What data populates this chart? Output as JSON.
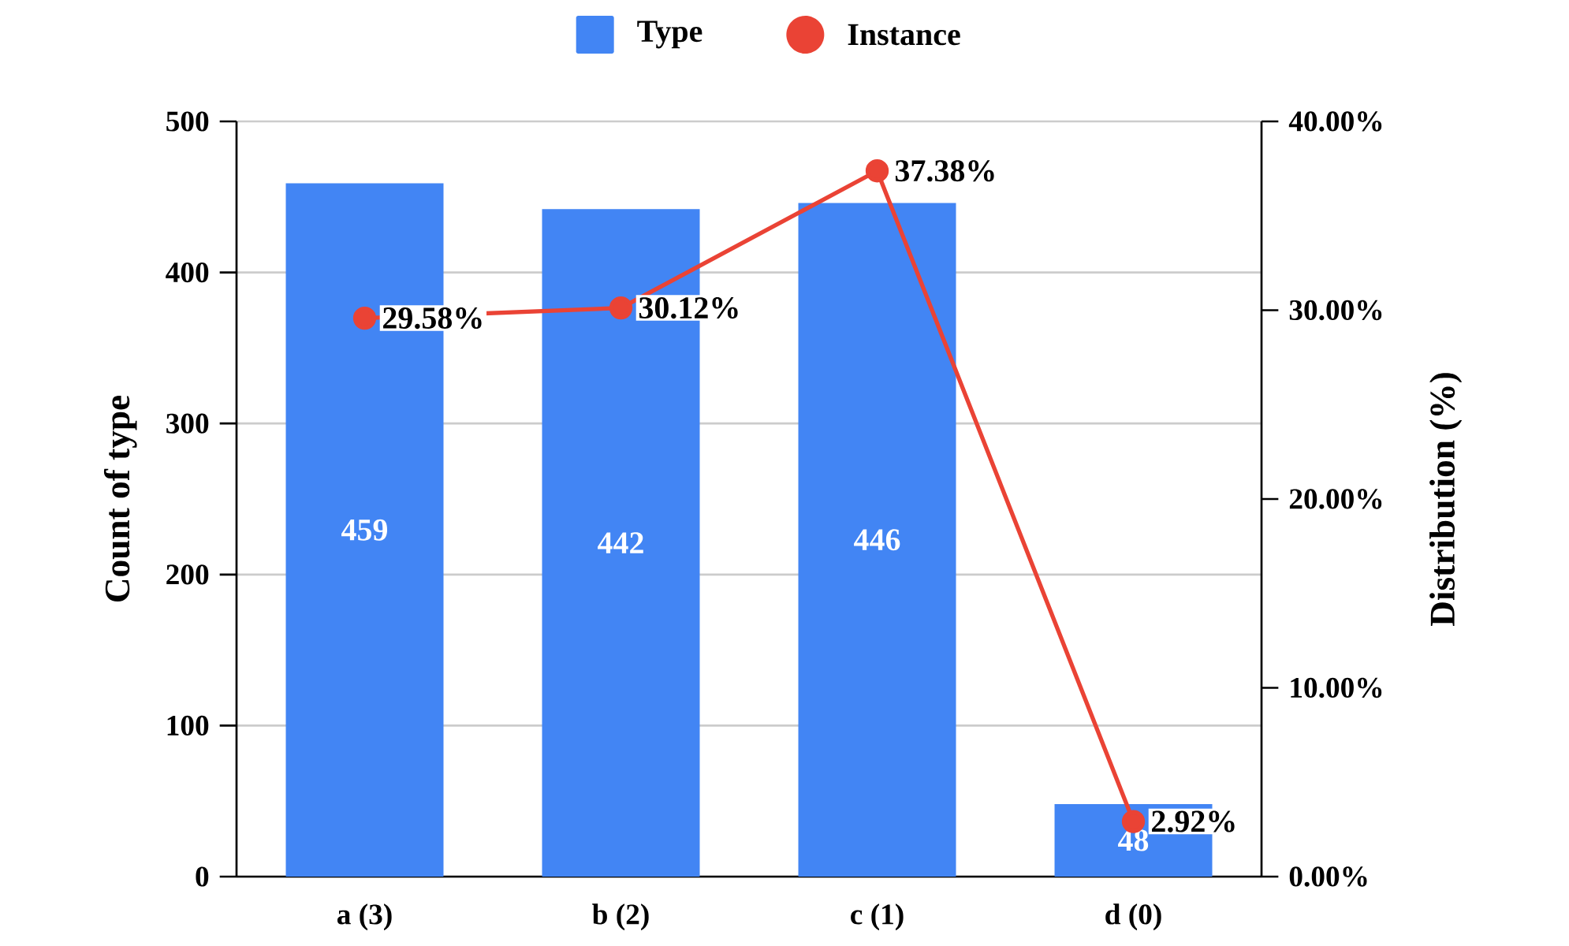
{
  "chart_data": {
    "type": "bar",
    "ylabel": "Count of type",
    "y2label": "Distribution (%)",
    "categories": [
      "a (3)",
      "b (2)",
      "c (1)",
      "d (0)"
    ],
    "series": [
      {
        "name": "Type",
        "color": "#4285f4",
        "values": [
          459,
          442,
          446,
          48
        ],
        "value_labels": [
          "459",
          "442",
          "446",
          "48"
        ]
      },
      {
        "name": "Instance",
        "type": "line",
        "axis": "y2",
        "color": "#ea4335",
        "marker": "circle",
        "values": [
          29.58,
          30.12,
          37.38,
          2.92
        ],
        "value_labels": [
          "29.58%",
          "30.12%",
          "37.38%",
          "2.92%"
        ]
      }
    ],
    "ylim": [
      0,
      500
    ],
    "yticks": [
      0,
      100,
      200,
      300,
      400,
      500
    ],
    "y2lim": [
      0,
      40
    ],
    "y2ticks": [
      {
        "value": 0,
        "label": "0.00%"
      },
      {
        "value": 10,
        "label": "10.00%"
      },
      {
        "value": 20,
        "label": "20.00%"
      },
      {
        "value": 30,
        "label": "30.00%"
      },
      {
        "value": 40,
        "label": "40.00%"
      }
    ],
    "grid": "y",
    "legend": "top"
  }
}
